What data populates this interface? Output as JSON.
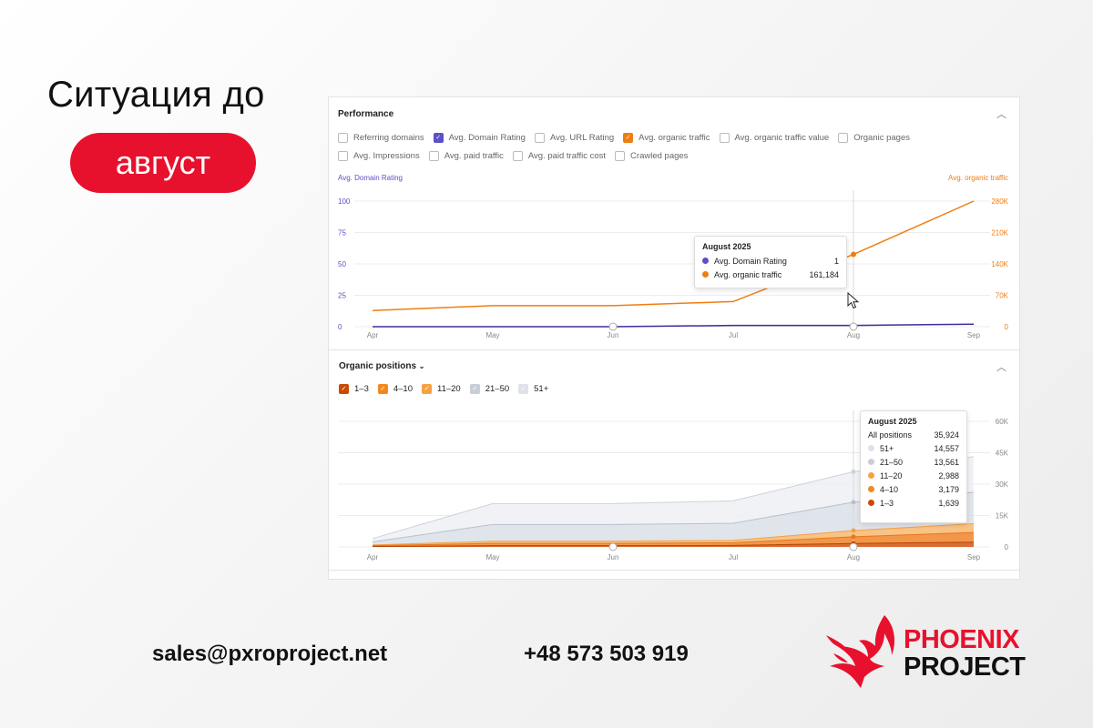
{
  "slide": {
    "headline": "Ситуация до",
    "month_badge": "август",
    "email": "sales@pxroproject.net",
    "phone": "+48 573 503 919",
    "logo_line1": "PHOENIX",
    "logo_line2": "PROJECT"
  },
  "colors": {
    "accent_red": "#e8112d",
    "domain_rating": "#5b50c8",
    "organic_traffic": "#f07d12"
  },
  "performance": {
    "title": "Performance",
    "collapse_icon": "chevron-up-icon",
    "metrics_row1": [
      {
        "label": "Referring domains",
        "checked": false
      },
      {
        "label": "Avg. Domain Rating",
        "checked": true
      },
      {
        "label": "Avg. URL Rating",
        "checked": false
      },
      {
        "label": "Avg. organic traffic",
        "checked": true
      },
      {
        "label": "Avg. organic traffic value",
        "checked": false
      },
      {
        "label": "Organic pages",
        "checked": false
      }
    ],
    "metrics_row2": [
      {
        "label": "Avg. Impressions",
        "checked": false
      },
      {
        "label": "Avg. paid traffic",
        "checked": false
      },
      {
        "label": "Avg. paid traffic cost",
        "checked": false
      },
      {
        "label": "Crawled pages",
        "checked": false
      }
    ],
    "left_axis_title": "Avg. Domain Rating",
    "right_axis_title": "Avg. organic traffic",
    "tooltip": {
      "title": "August 2025",
      "rows": [
        {
          "label": "Avg. Domain Rating",
          "value": "1"
        },
        {
          "label": "Avg. organic traffic",
          "value": "161,184"
        }
      ]
    }
  },
  "organic_positions": {
    "title": "Organic positions",
    "dropdown_icon": "chevron-down-icon",
    "collapse_icon": "chevron-up-icon",
    "filters": [
      {
        "label": "1–3",
        "checked": true
      },
      {
        "label": "4–10",
        "checked": true
      },
      {
        "label": "11–20",
        "checked": true
      },
      {
        "label": "21–50",
        "checked": true
      },
      {
        "label": "51+",
        "checked": true
      }
    ],
    "tooltip": {
      "title": "August 2025",
      "total_label": "All positions",
      "total_value": "35,924",
      "rows": [
        {
          "label": "51+",
          "value": "14,557"
        },
        {
          "label": "21–50",
          "value": "13,561"
        },
        {
          "label": "11–20",
          "value": "2,988"
        },
        {
          "label": "4–10",
          "value": "3,179"
        },
        {
          "label": "1–3",
          "value": "1,639"
        }
      ]
    }
  },
  "chart_data": [
    {
      "type": "line",
      "x": [
        "Apr",
        "May",
        "Jun",
        "Jul",
        "Aug",
        "Sep"
      ],
      "series": [
        {
          "name": "Avg. Domain Rating",
          "axis": "left",
          "values": [
            0,
            0,
            0,
            1,
            1,
            2
          ]
        },
        {
          "name": "Avg. organic traffic",
          "axis": "right",
          "values": [
            36000,
            47000,
            47000,
            56000,
            161184,
            280000
          ]
        }
      ],
      "y_left": {
        "ticks": [
          "0",
          "25",
          "50",
          "75",
          "100"
        ],
        "values": [
          0,
          25,
          50,
          75,
          100
        ],
        "range": [
          0,
          100
        ]
      },
      "y_right": {
        "ticks": [
          "0",
          "70K",
          "140K",
          "210K",
          "280K"
        ],
        "values": [
          0,
          70000,
          140000,
          210000,
          280000
        ],
        "range": [
          0,
          280000
        ]
      },
      "xlabel": "",
      "ylabel": "Avg. Domain Rating",
      "ylabel_right": "Avg. organic traffic",
      "grid": true
    },
    {
      "type": "area",
      "stacked": true,
      "x": [
        "Apr",
        "May",
        "Jun",
        "Jul",
        "Aug",
        "Sep"
      ],
      "series": [
        {
          "name": "1–3",
          "values": [
            200,
            600,
            600,
            700,
            1639,
            2300
          ]
        },
        {
          "name": "4–10",
          "values": [
            400,
            1100,
            1100,
            1300,
            3179,
            4600
          ]
        },
        {
          "name": "11–20",
          "values": [
            300,
            1000,
            1000,
            1100,
            2988,
            4200
          ]
        },
        {
          "name": "21–50",
          "values": [
            1500,
            8000,
            8000,
            8200,
            13561,
            15000
          ]
        },
        {
          "name": "51+",
          "values": [
            1600,
            10000,
            10000,
            10700,
            14557,
            17000
          ]
        }
      ],
      "y_right": {
        "ticks": [
          "0",
          "15K",
          "30K",
          "45K",
          "60K"
        ],
        "values": [
          0,
          15000,
          30000,
          45000,
          60000
        ],
        "range": [
          0,
          60000
        ]
      },
      "grid": true
    }
  ]
}
